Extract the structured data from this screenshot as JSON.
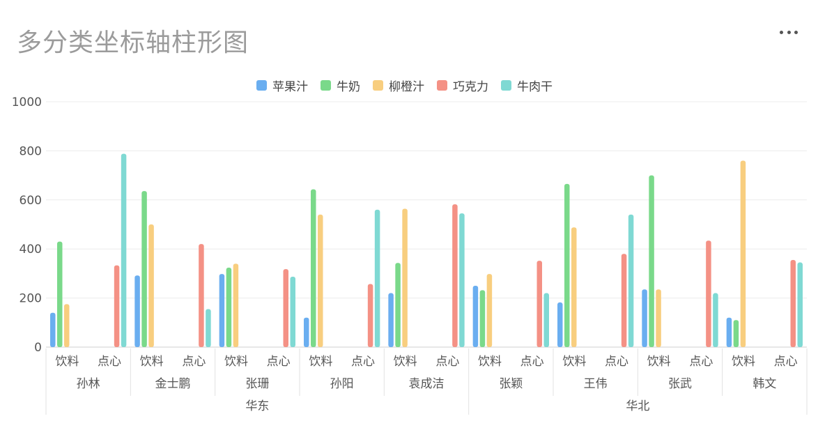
{
  "title": "多分类坐标轴柱形图",
  "menu_icon": "more-horizontal-icon",
  "colors": {
    "苹果汁": "#6aaef0",
    "牛奶": "#7ad98a",
    "柳橙汁": "#f8ce7f",
    "巧克力": "#f49185",
    "牛肉干": "#7fd9d3"
  },
  "chart_data": {
    "type": "bar",
    "title": "多分类坐标轴柱形图",
    "ylim": [
      0,
      1000
    ],
    "yticks": [
      0,
      200,
      400,
      600,
      800,
      1000
    ],
    "grid": true,
    "legend_position": "top-center",
    "series_names": [
      "苹果汁",
      "牛奶",
      "柳橙汁",
      "巧克力",
      "牛肉干"
    ],
    "regions": [
      {
        "name": "华东",
        "people": [
          {
            "name": "孙林",
            "groups": [
              {
                "name": "饮料",
                "values": [
                  140,
                  430,
                  175
                ]
              },
              {
                "name": "点心",
                "values": [
                  333,
                  788
                ]
              }
            ]
          },
          {
            "name": "金士鹏",
            "groups": [
              {
                "name": "饮料",
                "values": [
                  292,
                  636,
                  500
                ]
              },
              {
                "name": "点心",
                "values": [
                  420,
                  155
                ]
              }
            ]
          },
          {
            "name": "张珊",
            "groups": [
              {
                "name": "饮料",
                "values": [
                  298,
                  324,
                  340
                ]
              },
              {
                "name": "点心",
                "values": [
                  318,
                  287
                ]
              }
            ]
          },
          {
            "name": "孙阳",
            "groups": [
              {
                "name": "饮料",
                "values": [
                  120,
                  643,
                  540
                ]
              },
              {
                "name": "点心",
                "values": [
                  257,
                  560
                ]
              }
            ]
          },
          {
            "name": "袁成洁",
            "groups": [
              {
                "name": "饮料",
                "values": [
                  220,
                  343,
                  564
                ]
              },
              {
                "name": "点心",
                "values": [
                  582,
                  545
                ]
              }
            ]
          }
        ]
      },
      {
        "name": "华北",
        "people": [
          {
            "name": "张颖",
            "groups": [
              {
                "name": "饮料",
                "values": [
                  250,
                  232,
                  298
                ]
              },
              {
                "name": "点心",
                "values": [
                  352,
                  220
                ]
              }
            ]
          },
          {
            "name": "王伟",
            "groups": [
              {
                "name": "饮料",
                "values": [
                  182,
                  665,
                  488
                ]
              },
              {
                "name": "点心",
                "values": [
                  380,
                  540
                ]
              }
            ]
          },
          {
            "name": "张武",
            "groups": [
              {
                "name": "饮料",
                "values": [
                  235,
                  700,
                  235
                ]
              },
              {
                "name": "点心",
                "values": [
                  434,
                  220
                ]
              }
            ]
          },
          {
            "name": "韩文",
            "groups": [
              {
                "name": "饮料",
                "values": [
                  120,
                  110,
                  760
                ]
              },
              {
                "name": "点心",
                "values": [
                  355,
                  345
                ]
              }
            ]
          }
        ]
      }
    ]
  }
}
